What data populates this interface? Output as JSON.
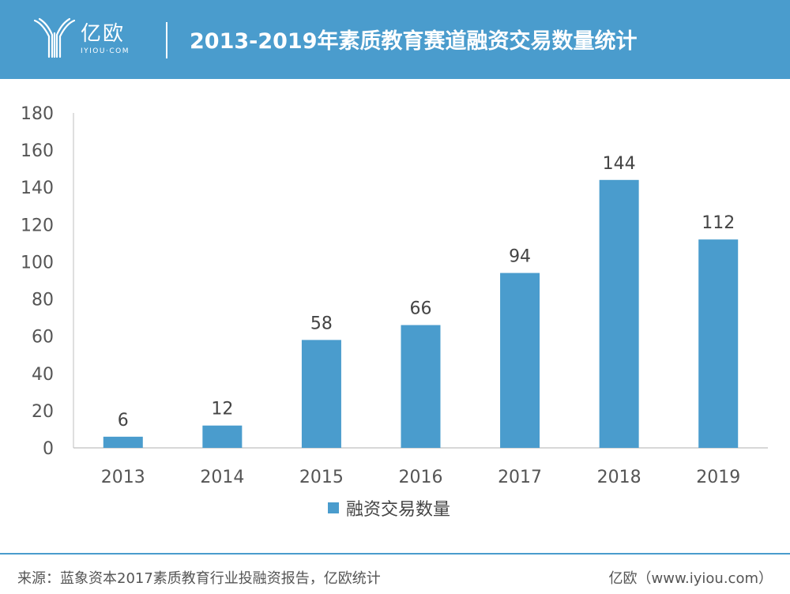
{
  "header": {
    "logo_text": "亿欧",
    "logo_sub": "IYIOU·COM",
    "title": "2013-2019年素质教育赛道融资交易数量统计"
  },
  "colors": {
    "header_bg": "#4a9ccd",
    "bar": "#4a9ccd"
  },
  "chart_data": {
    "type": "bar",
    "title": "2013-2019年素质教育赛道融资交易数量统计",
    "categories": [
      "2013",
      "2014",
      "2015",
      "2016",
      "2017",
      "2018",
      "2019"
    ],
    "series": [
      {
        "name": "融资交易数量",
        "values": [
          6,
          12,
          58,
          66,
          94,
          144,
          112
        ]
      }
    ],
    "ylim": [
      0,
      180
    ],
    "yticks": [
      0,
      20,
      40,
      60,
      80,
      100,
      120,
      140,
      160,
      180
    ],
    "xlabel": "",
    "ylabel": "",
    "grid": false,
    "legend": "bottom-center",
    "data_labels": true
  },
  "footer": {
    "source": "来源：蓝象资本2017素质教育行业投融资报告，亿欧统计",
    "brand": "亿欧（www.iyiou.com）"
  }
}
